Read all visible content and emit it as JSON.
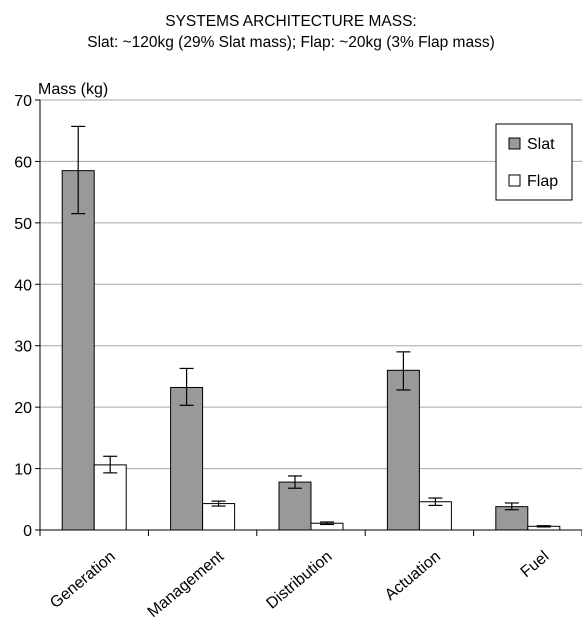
{
  "chart_data": {
    "type": "bar",
    "title": "SYSTEMS ARCHITECTURE MASS:",
    "subtitle": "Slat: ~120kg (29% Slat mass); Flap: ~20kg (3% Flap mass)",
    "ylabel": "Mass (kg)",
    "xlabel": "",
    "ylim": [
      0,
      70
    ],
    "yticks": [
      0,
      10,
      20,
      30,
      40,
      50,
      60,
      70
    ],
    "grid": true,
    "legend": "top-right",
    "categories": [
      "Generation",
      "Management",
      "Distribution",
      "Actuation",
      "Fuel"
    ],
    "series": [
      {
        "name": "Slat",
        "color": "#999999",
        "values": [
          58.5,
          23.2,
          7.8,
          26.0,
          3.8
        ],
        "err_low": [
          51.5,
          20.3,
          6.8,
          22.8,
          3.3
        ],
        "err_high": [
          65.7,
          26.3,
          8.8,
          29.0,
          4.4
        ]
      },
      {
        "name": "Flap",
        "color": "#ffffff",
        "values": [
          10.6,
          4.3,
          1.1,
          4.6,
          0.6
        ],
        "err_low": [
          9.3,
          3.9,
          0.9,
          4.0,
          0.5
        ],
        "err_high": [
          12.0,
          4.7,
          1.3,
          5.2,
          0.7
        ]
      }
    ]
  }
}
